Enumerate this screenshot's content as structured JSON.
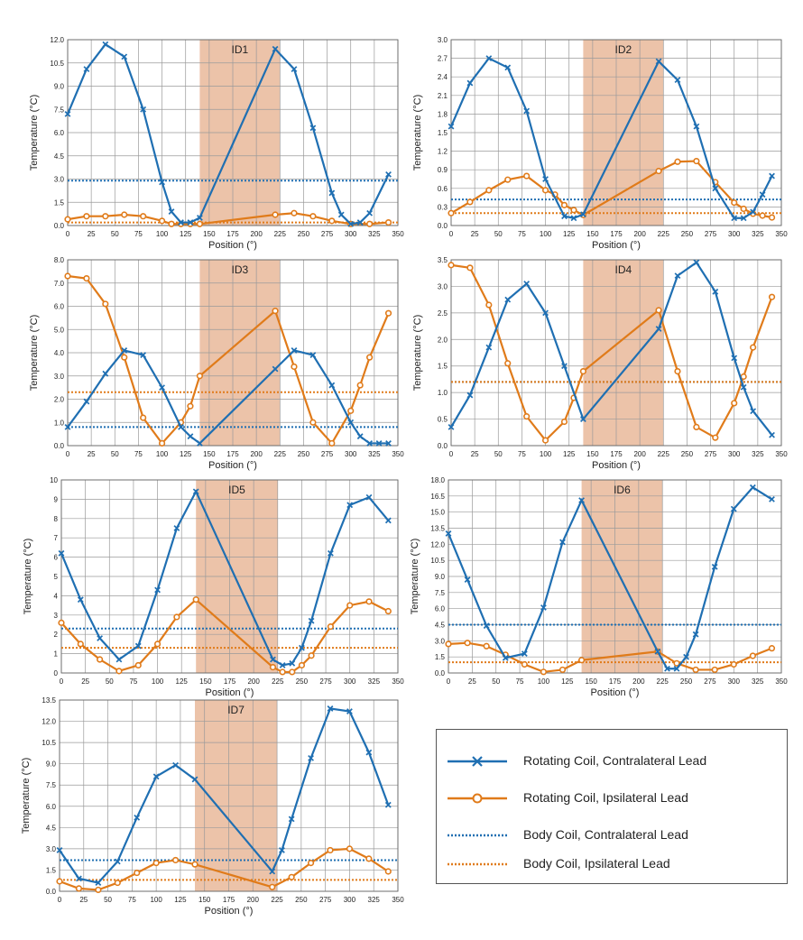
{
  "colors": {
    "rotating_contra": "#1f6fb2",
    "rotating_ipsi": "#e07b1a",
    "shade": "#e9b99a"
  },
  "legend": {
    "items": [
      {
        "label": "Rotating Coil, Contralateral Lead",
        "style": "solid",
        "marker": "x",
        "color": "#1f6fb2"
      },
      {
        "label": "Rotating Coil, Ipsilateral Lead",
        "style": "solid",
        "marker": "o",
        "color": "#e07b1a"
      },
      {
        "label": "Body Coil, Contralateral Lead",
        "style": "dotted",
        "marker": "none",
        "color": "#1f6fb2"
      },
      {
        "label": "Body Coil, Ipsilateral Lead",
        "style": "dotted",
        "marker": "none",
        "color": "#e07b1a"
      }
    ]
  },
  "chart_data": [
    {
      "title": "ID1",
      "type": "line",
      "xlabel": "Position (°)",
      "ylabel": "Temperature (°C)",
      "xlim": [
        0,
        350
      ],
      "ylim": [
        0,
        12
      ],
      "shaded_region": [
        140,
        225
      ],
      "x_ticks": [
        0,
        25,
        50,
        75,
        100,
        125,
        150,
        175,
        200,
        225,
        250,
        275,
        300,
        325,
        350
      ],
      "y_ticks": [
        0.0,
        1.5,
        3.0,
        4.5,
        6.0,
        7.5,
        9.0,
        10.5,
        12.0
      ],
      "y_tick_labels": [
        "0.0",
        "1.5",
        "3.0",
        "4.5",
        "6.0",
        "7.5",
        "9.0",
        "10.5",
        "12.0"
      ],
      "grid": true,
      "series": [
        {
          "name": "Rotating Coil, Contralateral Lead",
          "x": [
            0,
            20,
            40,
            60,
            80,
            100,
            110,
            120,
            130,
            140,
            220,
            240,
            260,
            280,
            290,
            300,
            310,
            320,
            340
          ],
          "y": [
            7.2,
            10.1,
            11.7,
            10.9,
            7.5,
            2.8,
            0.9,
            0.2,
            0.2,
            0.5,
            11.4,
            10.1,
            6.3,
            2.1,
            0.7,
            0.1,
            0.2,
            0.8,
            3.3
          ]
        },
        {
          "name": "Rotating Coil, Ipsilateral Lead",
          "x": [
            0,
            20,
            40,
            60,
            80,
            100,
            110,
            120,
            130,
            140,
            220,
            240,
            260,
            280,
            300,
            320,
            340
          ],
          "y": [
            0.4,
            0.6,
            0.6,
            0.7,
            0.6,
            0.3,
            0.1,
            0.1,
            0.1,
            0.1,
            0.7,
            0.8,
            0.6,
            0.3,
            0.1,
            0.1,
            0.2
          ]
        },
        {
          "name": "Body Coil, Contralateral Lead",
          "constant": 2.9
        },
        {
          "name": "Body Coil, Ipsilateral Lead",
          "constant": 0.2
        }
      ]
    },
    {
      "title": "ID2",
      "type": "line",
      "xlabel": "Position (°)",
      "ylabel": "Temperature (°C)",
      "xlim": [
        0,
        350
      ],
      "ylim": [
        0,
        3.0
      ],
      "shaded_region": [
        140,
        225
      ],
      "x_ticks": [
        0,
        25,
        50,
        75,
        100,
        125,
        150,
        175,
        200,
        225,
        250,
        275,
        300,
        325,
        350
      ],
      "y_ticks": [
        0.0,
        0.3,
        0.6,
        0.9,
        1.2,
        1.5,
        1.8,
        2.1,
        2.4,
        2.7,
        3.0
      ],
      "y_tick_labels": [
        "0.0",
        "0.3",
        "0.6",
        "0.9",
        "1.2",
        "1.5",
        "1.8",
        "2.1",
        "2.4",
        "2.7",
        "3.0"
      ],
      "grid": true,
      "series": [
        {
          "name": "Rotating Coil, Contralateral Lead",
          "x": [
            0,
            20,
            40,
            60,
            80,
            100,
            120,
            130,
            140,
            220,
            240,
            260,
            280,
            300,
            310,
            320,
            330,
            340
          ],
          "y": [
            1.6,
            2.3,
            2.7,
            2.55,
            1.85,
            0.75,
            0.15,
            0.12,
            0.18,
            2.65,
            2.35,
            1.6,
            0.6,
            0.12,
            0.12,
            0.22,
            0.5,
            0.8
          ]
        },
        {
          "name": "Rotating Coil, Ipsilateral Lead",
          "x": [
            0,
            20,
            40,
            60,
            80,
            100,
            110,
            120,
            130,
            140,
            220,
            240,
            260,
            280,
            300,
            310,
            320,
            330,
            340
          ],
          "y": [
            0.2,
            0.38,
            0.57,
            0.74,
            0.8,
            0.57,
            0.5,
            0.33,
            0.25,
            0.17,
            0.88,
            1.03,
            1.04,
            0.7,
            0.37,
            0.27,
            0.19,
            0.16,
            0.13
          ]
        },
        {
          "name": "Body Coil, Contralateral Lead",
          "constant": 0.42
        },
        {
          "name": "Body Coil, Ipsilateral Lead",
          "constant": 0.2
        }
      ]
    },
    {
      "title": "ID3",
      "type": "line",
      "xlabel": "Position (°)",
      "ylabel": "Temperature (°C)",
      "xlim": [
        0,
        350
      ],
      "ylim": [
        0,
        8.0
      ],
      "shaded_region": [
        140,
        225
      ],
      "x_ticks": [
        0,
        25,
        50,
        75,
        100,
        125,
        150,
        175,
        200,
        225,
        250,
        275,
        300,
        325,
        350
      ],
      "y_ticks": [
        0,
        1,
        2,
        3,
        4,
        5,
        6,
        7,
        8
      ],
      "y_tick_labels": [
        "0.0",
        "1.0",
        "2.0",
        "3.0",
        "4.0",
        "5.0",
        "6.0",
        "7.0",
        "8.0"
      ],
      "grid": true,
      "series": [
        {
          "name": "Rotating Coil, Contralateral Lead",
          "x": [
            0,
            20,
            40,
            60,
            80,
            100,
            120,
            130,
            140,
            220,
            240,
            260,
            280,
            300,
            310,
            320,
            330,
            340
          ],
          "y": [
            0.8,
            1.9,
            3.1,
            4.1,
            3.9,
            2.5,
            0.8,
            0.4,
            0.1,
            3.3,
            4.1,
            3.9,
            2.6,
            1.0,
            0.4,
            0.1,
            0.1,
            0.1
          ]
        },
        {
          "name": "Rotating Coil, Ipsilateral Lead",
          "x": [
            0,
            20,
            40,
            60,
            80,
            100,
            120,
            130,
            140,
            220,
            240,
            260,
            280,
            300,
            310,
            320,
            340
          ],
          "y": [
            7.3,
            7.2,
            6.1,
            3.8,
            1.2,
            0.1,
            1.0,
            1.7,
            3.0,
            5.8,
            3.4,
            1.0,
            0.1,
            1.5,
            2.6,
            3.8,
            5.7
          ]
        },
        {
          "name": "Body Coil, Contralateral Lead",
          "constant": 0.8
        },
        {
          "name": "Body Coil, Ipsilateral Lead",
          "constant": 2.3
        }
      ]
    },
    {
      "title": "ID4",
      "type": "line",
      "xlabel": "Position (°)",
      "ylabel": "Temperature (°C)",
      "xlim": [
        0,
        350
      ],
      "ylim": [
        0,
        3.5
      ],
      "shaded_region": [
        140,
        225
      ],
      "x_ticks": [
        0,
        25,
        50,
        75,
        100,
        125,
        150,
        175,
        200,
        225,
        250,
        275,
        300,
        325,
        350
      ],
      "y_ticks": [
        0.0,
        0.5,
        1.0,
        1.5,
        2.0,
        2.5,
        3.0,
        3.5
      ],
      "y_tick_labels": [
        "0.0",
        "0.5",
        "1.0",
        "1.5",
        "2.0",
        "2.5",
        "3.0",
        "3.5"
      ],
      "grid": true,
      "series": [
        {
          "name": "Rotating Coil, Contralateral Lead",
          "x": [
            0,
            20,
            40,
            60,
            80,
            100,
            120,
            140,
            220,
            240,
            260,
            280,
            300,
            310,
            320,
            340
          ],
          "y": [
            0.35,
            0.95,
            1.85,
            2.75,
            3.05,
            2.5,
            1.5,
            0.5,
            2.2,
            3.2,
            3.45,
            2.9,
            1.65,
            1.1,
            0.65,
            0.2
          ]
        },
        {
          "name": "Rotating Coil, Ipsilateral Lead",
          "x": [
            0,
            20,
            40,
            60,
            80,
            100,
            120,
            130,
            140,
            220,
            240,
            260,
            280,
            300,
            310,
            320,
            340
          ],
          "y": [
            3.4,
            3.35,
            2.65,
            1.55,
            0.55,
            0.1,
            0.45,
            0.9,
            1.4,
            2.55,
            1.4,
            0.35,
            0.15,
            0.8,
            1.3,
            1.85,
            2.8
          ]
        },
        {
          "name": "Body Coil, Contralateral Lead",
          "constant": 1.2
        },
        {
          "name": "Body Coil, Ipsilateral Lead",
          "constant": 1.2
        }
      ]
    },
    {
      "title": "ID5",
      "type": "line",
      "xlabel": "Position (°)",
      "ylabel": "Temperature (°C)",
      "xlim": [
        0,
        350
      ],
      "ylim": [
        0,
        10
      ],
      "shaded_region": [
        140,
        225
      ],
      "x_ticks": [
        0,
        25,
        50,
        75,
        100,
        125,
        150,
        175,
        200,
        225,
        250,
        275,
        300,
        325,
        350
      ],
      "y_ticks": [
        0,
        1,
        2,
        3,
        4,
        5,
        6,
        7,
        8,
        9,
        10
      ],
      "y_tick_labels": [
        "0",
        "1",
        "2",
        "3",
        "4",
        "5",
        "6",
        "7",
        "8",
        "9",
        "10"
      ],
      "grid": true,
      "series": [
        {
          "name": "Rotating Coil, Contralateral Lead",
          "x": [
            0,
            20,
            40,
            60,
            80,
            100,
            120,
            140,
            220,
            230,
            240,
            250,
            260,
            280,
            300,
            320,
            340
          ],
          "y": [
            6.2,
            3.8,
            1.8,
            0.7,
            1.4,
            4.3,
            7.5,
            9.4,
            0.7,
            0.4,
            0.5,
            1.3,
            2.7,
            6.2,
            8.7,
            9.1,
            7.9
          ]
        },
        {
          "name": "Rotating Coil, Ipsilateral Lead",
          "x": [
            0,
            20,
            40,
            60,
            80,
            100,
            120,
            140,
            220,
            230,
            240,
            250,
            260,
            280,
            300,
            320,
            340
          ],
          "y": [
            2.6,
            1.5,
            0.7,
            0.1,
            0.4,
            1.5,
            2.9,
            3.8,
            0.3,
            0.05,
            0.05,
            0.4,
            0.9,
            2.4,
            3.5,
            3.7,
            3.2
          ]
        },
        {
          "name": "Body Coil, Contralateral Lead",
          "constant": 2.3
        },
        {
          "name": "Body Coil, Ipsilateral Lead",
          "constant": 1.3
        }
      ]
    },
    {
      "title": "ID6",
      "type": "line",
      "xlabel": "Position (°)",
      "ylabel": "Temperature (°C)",
      "xlim": [
        0,
        350
      ],
      "ylim": [
        0,
        18
      ],
      "shaded_region": [
        140,
        225
      ],
      "x_ticks": [
        0,
        25,
        50,
        75,
        100,
        125,
        150,
        175,
        200,
        225,
        250,
        275,
        300,
        325,
        350
      ],
      "y_ticks": [
        0.0,
        1.5,
        3.0,
        4.5,
        6.0,
        7.5,
        9.0,
        10.5,
        12.0,
        13.5,
        15.0,
        16.5,
        18.0
      ],
      "y_tick_labels": [
        "0.0",
        "1.5",
        "3.0",
        "4.5",
        "6.0",
        "7.5",
        "9.0",
        "10.5",
        "12.0",
        "13.5",
        "15.0",
        "16.5",
        "18.0"
      ],
      "grid": true,
      "series": [
        {
          "name": "Rotating Coil, Contralateral Lead",
          "x": [
            0,
            20,
            40,
            60,
            80,
            100,
            120,
            140,
            220,
            230,
            240,
            250,
            260,
            280,
            300,
            320,
            340
          ],
          "y": [
            13.0,
            8.7,
            4.4,
            1.4,
            1.8,
            6.1,
            12.2,
            16.1,
            2.0,
            0.4,
            0.4,
            1.5,
            3.6,
            9.9,
            15.3,
            17.3,
            16.2
          ]
        },
        {
          "name": "Rotating Coil, Ipsilateral Lead",
          "x": [
            0,
            20,
            40,
            60,
            80,
            100,
            120,
            140,
            220,
            240,
            260,
            280,
            300,
            320,
            340
          ],
          "y": [
            2.7,
            2.8,
            2.5,
            1.7,
            0.8,
            0.1,
            0.3,
            1.2,
            2.0,
            0.9,
            0.3,
            0.3,
            0.8,
            1.6,
            2.3
          ]
        },
        {
          "name": "Body Coil, Contralateral Lead",
          "constant": 4.5
        },
        {
          "name": "Body Coil, Ipsilateral Lead",
          "constant": 1.0
        }
      ]
    },
    {
      "title": "ID7",
      "type": "line",
      "xlabel": "Position (°)",
      "ylabel": "Temperature (°C)",
      "xlim": [
        0,
        350
      ],
      "ylim": [
        0,
        13.5
      ],
      "shaded_region": [
        140,
        225
      ],
      "x_ticks": [
        0,
        25,
        50,
        75,
        100,
        125,
        150,
        175,
        200,
        225,
        250,
        275,
        300,
        325,
        350
      ],
      "y_ticks": [
        0.0,
        1.5,
        3.0,
        4.5,
        6.0,
        7.5,
        9.0,
        10.5,
        12.0,
        13.5
      ],
      "y_tick_labels": [
        "0.0",
        "1.5",
        "3.0",
        "4.5",
        "6.0",
        "7.5",
        "9.0",
        "10.5",
        "12.0",
        "13.5"
      ],
      "grid": true,
      "series": [
        {
          "name": "Rotating Coil, Contralateral Lead",
          "x": [
            0,
            20,
            40,
            60,
            80,
            100,
            120,
            140,
            220,
            230,
            240,
            260,
            280,
            300,
            320,
            340
          ],
          "y": [
            2.9,
            0.9,
            0.6,
            2.1,
            5.2,
            8.1,
            8.9,
            7.9,
            1.4,
            2.9,
            5.1,
            9.4,
            12.9,
            12.7,
            9.8,
            6.1
          ]
        },
        {
          "name": "Rotating Coil, Ipsilateral Lead",
          "x": [
            0,
            20,
            40,
            60,
            80,
            100,
            120,
            140,
            220,
            240,
            260,
            280,
            300,
            320,
            340
          ],
          "y": [
            0.7,
            0.2,
            0.1,
            0.6,
            1.3,
            2.0,
            2.2,
            1.9,
            0.3,
            1.0,
            2.0,
            2.9,
            3.0,
            2.3,
            1.4
          ]
        },
        {
          "name": "Body Coil, Contralateral Lead",
          "constant": 2.2
        },
        {
          "name": "Body Coil, Ipsilateral Lead",
          "constant": 0.8
        }
      ]
    }
  ]
}
